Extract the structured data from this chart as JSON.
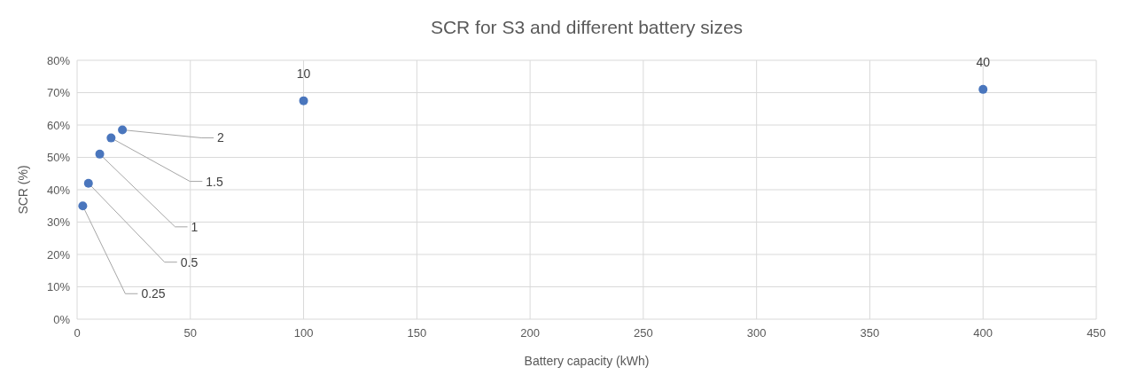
{
  "chart_data": {
    "type": "scatter",
    "title": "SCR for S3 and different battery sizes",
    "xlabel": "Battery capacity (kWh)",
    "ylabel": "SCR (%)",
    "x": [
      2.5,
      5,
      10,
      15,
      20,
      100,
      400
    ],
    "values": [
      35,
      42,
      51,
      56,
      58.5,
      67.5,
      71
    ],
    "color": "#4a76bd",
    "marker": "circle",
    "xlim": [
      0,
      450
    ],
    "xticks": [
      0,
      50,
      100,
      150,
      200,
      250,
      300,
      350,
      400,
      450
    ],
    "ylim": [
      0,
      80
    ],
    "yticks": [
      {
        "value": 0,
        "label": "0%"
      },
      {
        "value": 10,
        "label": "10%"
      },
      {
        "value": 20,
        "label": "20%"
      },
      {
        "value": 30,
        "label": "30%"
      },
      {
        "value": 40,
        "label": "40%"
      },
      {
        "value": 50,
        "label": "50%"
      },
      {
        "value": 60,
        "label": "60%"
      },
      {
        "value": 70,
        "label": "70%"
      },
      {
        "value": 80,
        "label": "80%"
      }
    ],
    "grid": true,
    "annotations": [
      {
        "text": "0.25",
        "x": 2.5,
        "y": 35
      },
      {
        "text": "0.5",
        "x": 5,
        "y": 42
      },
      {
        "text": "1",
        "x": 10,
        "y": 51
      },
      {
        "text": "1.5",
        "x": 15,
        "y": 56
      },
      {
        "text": "2",
        "x": 20,
        "y": 58.5
      },
      {
        "text": "10",
        "x": 100,
        "y": 67.5
      },
      {
        "text": "40",
        "x": 400,
        "y": 71
      }
    ]
  }
}
